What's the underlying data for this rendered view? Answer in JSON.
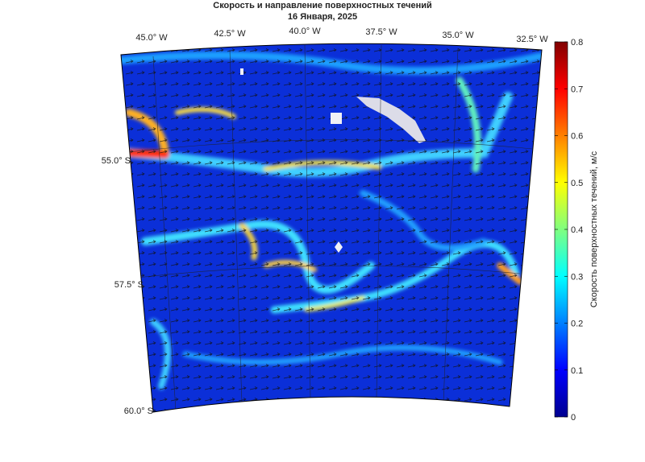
{
  "title": "Скорость и направление поверхностных течений",
  "subtitle": "16 Января, 2025",
  "longitude_labels": [
    "45.0° W",
    "42.5° W",
    "40.0° W",
    "37.5° W",
    "35.0° W",
    "32.5° W"
  ],
  "latitude_labels": [
    "55.0° S",
    "57.5° S",
    "60.0° S"
  ],
  "colorbar": {
    "label": "Скорость поверхностных течений, м/с",
    "lim": [
      0,
      0.8
    ],
    "ticks": [
      0,
      0.1,
      0.2,
      0.3,
      0.4,
      0.5,
      0.6,
      0.7,
      0.8
    ]
  }
}
